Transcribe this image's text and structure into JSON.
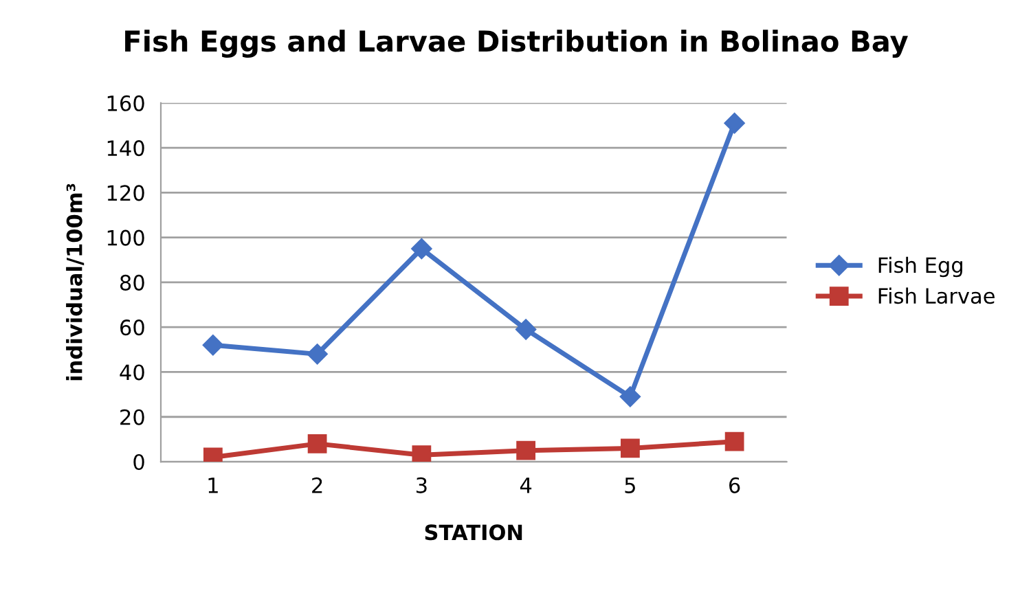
{
  "chart_data": {
    "type": "line",
    "title": "Fish Eggs and Larvae Distribution in Bolinao Bay",
    "xlabel": "STATION",
    "ylabel": "individual/100m³",
    "categories": [
      "1",
      "2",
      "3",
      "4",
      "5",
      "6"
    ],
    "series": [
      {
        "name": "Fish Egg",
        "color": "#4472c4",
        "marker": "diamond",
        "values": [
          52,
          48,
          95,
          59,
          29,
          151
        ]
      },
      {
        "name": "Fish Larvae",
        "color": "#be3a34",
        "marker": "square",
        "values": [
          2,
          8,
          3,
          5,
          6,
          9
        ]
      }
    ],
    "ylim": [
      0,
      160
    ],
    "yticks": [
      0,
      20,
      40,
      60,
      80,
      100,
      120,
      140,
      160
    ],
    "grid": "y",
    "legend": "right",
    "line_style": "solid"
  }
}
